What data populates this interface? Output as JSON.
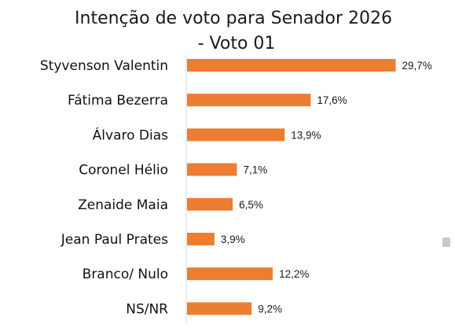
{
  "chart_data": {
    "type": "bar",
    "orientation": "horizontal",
    "title_lines": [
      "Intenção de voto para Senador 2026",
      "- Voto 01"
    ],
    "categories": [
      "Styvenson Valentin",
      "Fátima Bezerra",
      "Álvaro Dias",
      "Coronel Hélio",
      "Zenaide Maia",
      "Jean Paul Prates",
      "Branco/ Nulo",
      "NS/NR"
    ],
    "values": [
      29.7,
      17.6,
      13.9,
      7.1,
      6.5,
      3.9,
      12.2,
      9.2
    ],
    "value_labels": [
      "29,7%",
      "17,6%",
      "13,9%",
      "7,1%",
      "6,5%",
      "3,9%",
      "12,2%",
      "9,2%"
    ],
    "xlim": [
      0,
      30
    ],
    "grid": false,
    "legend": "none",
    "bar_color": "#ED7D31"
  }
}
